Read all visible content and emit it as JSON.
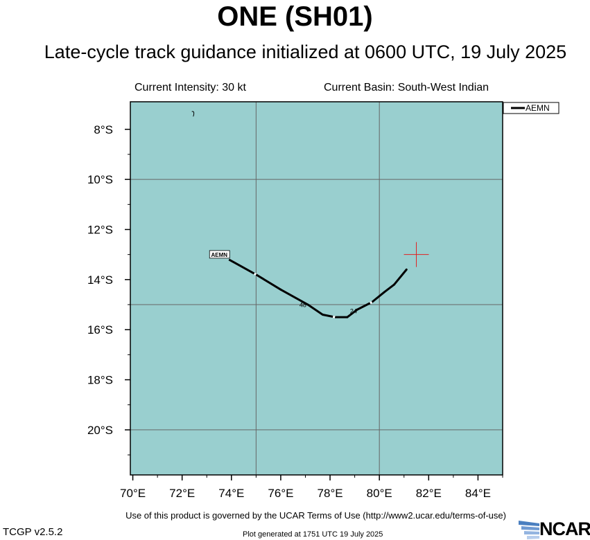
{
  "title": "ONE (SH01)",
  "subtitle": "Late-cycle track guidance initialized at 0600 UTC, 19 July 2025",
  "current_intensity": "Current Intensity: 30 kt",
  "current_basin": "Current Basin: South-West Indian",
  "terms_text": "Use of this product is governed by the UCAR Terms of Use (http://www2.ucar.edu/terms-of-use)",
  "version": "TCGP v2.5.2",
  "generated": "Plot generated at 1751 UTC   19 July 2025",
  "logo_text": "NCAR",
  "colors": {
    "ocean": "#99cfcf",
    "grid": "#666666",
    "track": "#000000",
    "current_position": "#e02020"
  },
  "chart_data": {
    "type": "line",
    "title": "ONE (SH01)",
    "x_axis": {
      "name": "longitude",
      "range": [
        69.9,
        85.0
      ],
      "ticks": [
        70,
        72,
        74,
        76,
        78,
        80,
        82,
        84
      ],
      "tick_labels": [
        "70°E",
        "72°E",
        "74°E",
        "76°E",
        "78°E",
        "80°E",
        "82°E",
        "84°E"
      ]
    },
    "y_axis": {
      "name": "latitude",
      "range": [
        -21.8,
        -6.9
      ],
      "ticks": [
        -8,
        -10,
        -12,
        -14,
        -16,
        -18,
        -20
      ],
      "tick_labels": [
        "8°S",
        "10°S",
        "12°S",
        "14°S",
        "16°S",
        "18°S",
        "20°S"
      ]
    },
    "grid": {
      "lon": [
        75,
        80
      ],
      "lat": [
        -10,
        -15,
        -20
      ]
    },
    "legend": {
      "placement": "top-right",
      "entries": [
        "AEMN"
      ]
    },
    "series": [
      {
        "name": "AEMN",
        "points": [
          [
            81.1,
            -13.6
          ],
          [
            80.6,
            -14.2
          ],
          [
            80.2,
            -14.5
          ],
          [
            79.7,
            -14.9
          ],
          [
            79.1,
            -15.2
          ],
          [
            78.7,
            -15.5
          ],
          [
            78.2,
            -15.5
          ],
          [
            77.7,
            -15.4
          ],
          [
            77.1,
            -15.0
          ],
          [
            76.0,
            -14.4
          ],
          [
            75.0,
            -13.8
          ],
          [
            73.9,
            -13.2
          ]
        ],
        "gaps_at_index": [
          3,
          6,
          10
        ],
        "label": "AEMN",
        "hour_labels": [
          {
            "text": "24",
            "lon": 78.95,
            "lat": -15.35
          },
          {
            "text": "48",
            "lon": 76.9,
            "lat": -15.1
          }
        ]
      }
    ],
    "current_position": {
      "lon": 81.5,
      "lat": -13.0
    },
    "islands": [
      {
        "lon": 72.45,
        "lat": -7.35
      }
    ]
  }
}
